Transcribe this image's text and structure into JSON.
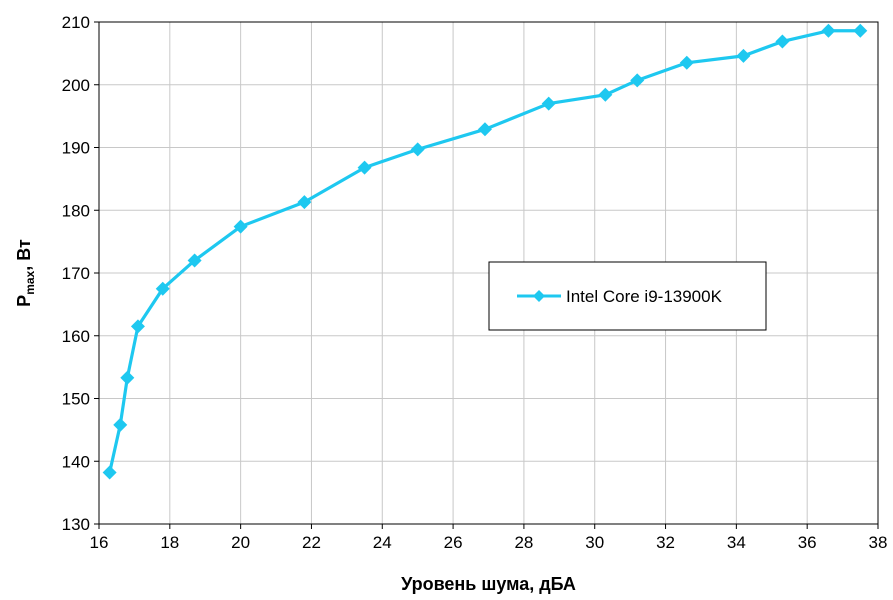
{
  "chart_data": {
    "type": "line",
    "xlabel": "Уровень шума, дБА",
    "ylabel": {
      "main": "P",
      "sub": "max",
      "rest": ", Вт"
    },
    "xlim": [
      16,
      38
    ],
    "ylim": [
      130,
      210
    ],
    "xticks": [
      16,
      18,
      20,
      22,
      24,
      26,
      28,
      30,
      32,
      34,
      36,
      38
    ],
    "yticks": [
      130,
      140,
      150,
      160,
      170,
      180,
      190,
      200,
      210
    ],
    "grid": true,
    "legend_position": "center-right",
    "series": [
      {
        "name": "Intel Core i9-13900K",
        "color": "#1ec8f0",
        "marker": "diamond",
        "x": [
          16.3,
          16.6,
          16.8,
          17.1,
          17.8,
          18.7,
          20.0,
          21.8,
          23.5,
          25.0,
          26.9,
          28.7,
          30.3,
          31.2,
          32.6,
          34.2,
          35.3,
          36.6,
          37.5
        ],
        "y": [
          138.2,
          145.8,
          153.3,
          161.5,
          167.5,
          172.0,
          177.4,
          181.3,
          186.8,
          189.7,
          192.9,
          197.0,
          198.4,
          200.7,
          203.5,
          204.6,
          206.9,
          208.6,
          208.6
        ]
      }
    ]
  }
}
